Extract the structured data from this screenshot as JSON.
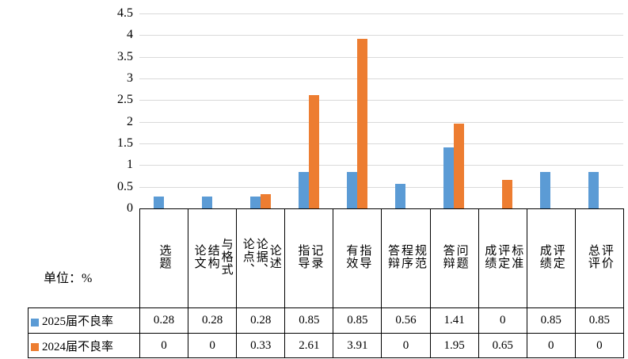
{
  "chart_data": {
    "type": "bar",
    "title": "",
    "unit_label": "单位：%",
    "categories": [
      "选题",
      "论文\n结构\n与格式",
      "论点、\n论据、\n论述",
      "指导\n记录",
      "有效\n指导",
      "答辩\n程序\n规范",
      "答辩\n问题",
      "成绩\n评定\n标准",
      "成绩\n评定",
      "总评\n评价"
    ],
    "series": [
      {
        "name": "2025届不良率",
        "color": "#5B9BD5",
        "values": [
          0.28,
          0.28,
          0.28,
          0.85,
          0.85,
          0.56,
          1.41,
          0,
          0.85,
          0.85
        ]
      },
      {
        "name": "2024届不良率",
        "color": "#ED7D31",
        "values": [
          0,
          0,
          0.33,
          2.61,
          3.91,
          0,
          1.95,
          0.65,
          0,
          0
        ]
      }
    ],
    "ylim": [
      0,
      4.5
    ],
    "ytick_labels": [
      "4.5",
      "4",
      "3.5",
      "3",
      "2.5",
      "2",
      "1.5",
      "1",
      "0.5",
      "0"
    ],
    "grid": true,
    "legend_position": "table-rows-left"
  }
}
